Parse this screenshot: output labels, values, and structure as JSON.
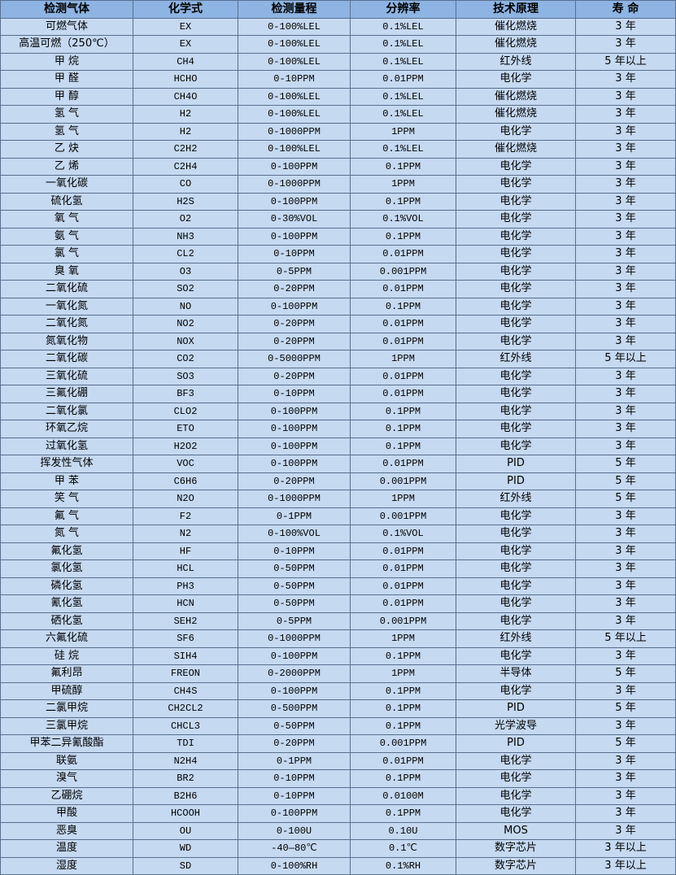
{
  "colors": {
    "header_bg": "#8db4e2",
    "row_bg": "#c5d9f1",
    "border": "#5a6f8f"
  },
  "table": {
    "headers": [
      "检测气体",
      "化学式",
      "检测量程",
      "分辨率",
      "技术原理",
      "寿 命"
    ],
    "rows": [
      [
        "可燃气体",
        "EX",
        "0-100%LEL",
        "0.1%LEL",
        "催化燃烧",
        "3 年"
      ],
      [
        "高温可燃（250℃）",
        "EX",
        "0-100%LEL",
        "0.1%LEL",
        "催化燃烧",
        "3 年"
      ],
      [
        "甲 烷",
        "CH4",
        "0-100%LEL",
        "0.1%LEL",
        "红外线",
        "5 年以上"
      ],
      [
        "甲 醛",
        "HCHO",
        "0-10PPM",
        "0.01PPM",
        "电化学",
        "3 年"
      ],
      [
        "甲 醇",
        "CH4O",
        "0-100%LEL",
        "0.1%LEL",
        "催化燃烧",
        "3 年"
      ],
      [
        "氢 气",
        "H2",
        "0-100%LEL",
        "0.1%LEL",
        "催化燃烧",
        "3 年"
      ],
      [
        "氢 气",
        "H2",
        "0-1000PPM",
        "1PPM",
        "电化学",
        "3 年"
      ],
      [
        "乙 炔",
        "C2H2",
        "0-100%LEL",
        "0.1%LEL",
        "催化燃烧",
        "3 年"
      ],
      [
        "乙 烯",
        "C2H4",
        "0-100PPM",
        "0.1PPM",
        "电化学",
        "3 年"
      ],
      [
        "一氧化碳",
        "CO",
        "0-1000PPM",
        "1PPM",
        "电化学",
        "3 年"
      ],
      [
        "硫化氢",
        "H2S",
        "0-100PPM",
        "0.1PPM",
        "电化学",
        "3 年"
      ],
      [
        "氧 气",
        "O2",
        "0-30%VOL",
        "0.1%VOL",
        "电化学",
        "3 年"
      ],
      [
        "氨 气",
        "NH3",
        "0-100PPM",
        "0.1PPM",
        "电化学",
        "3 年"
      ],
      [
        "氯 气",
        "CL2",
        "0-10PPM",
        "0.01PPM",
        "电化学",
        "3 年"
      ],
      [
        "臭 氧",
        "O3",
        "0-5PPM",
        "0.001PPM",
        "电化学",
        "3 年"
      ],
      [
        "二氧化硫",
        "SO2",
        "0-20PPM",
        "0.01PPM",
        "电化学",
        "3 年"
      ],
      [
        "一氧化氮",
        "NO",
        "0-100PPM",
        "0.1PPM",
        "电化学",
        "3 年"
      ],
      [
        "二氧化氮",
        "NO2",
        "0-20PPM",
        "0.01PPM",
        "电化学",
        "3 年"
      ],
      [
        "氮氧化物",
        "NOX",
        "0-20PPM",
        "0.01PPM",
        "电化学",
        "3 年"
      ],
      [
        "二氧化碳",
        "CO2",
        "0-5000PPM",
        "1PPM",
        "红外线",
        "5 年以上"
      ],
      [
        "三氧化硫",
        "SO3",
        "0-20PPM",
        "0.01PPM",
        "电化学",
        "3 年"
      ],
      [
        "三氟化硼",
        "BF3",
        "0-10PPM",
        "0.01PPM",
        "电化学",
        "3 年"
      ],
      [
        "二氧化氯",
        "CLO2",
        "0-100PPM",
        "0.1PPM",
        "电化学",
        "3 年"
      ],
      [
        "环氧乙烷",
        "ETO",
        "0-100PPM",
        "0.1PPM",
        "电化学",
        "3 年"
      ],
      [
        "过氧化氢",
        "H2O2",
        "0-100PPM",
        "0.1PPM",
        "电化学",
        "3 年"
      ],
      [
        "挥发性气体",
        "VOC",
        "0-100PPM",
        "0.01PPM",
        "PID",
        "5 年"
      ],
      [
        "甲 苯",
        "C6H6",
        "0-20PPM",
        "0.001PPM",
        "PID",
        "5 年"
      ],
      [
        "笑 气",
        "N2O",
        "0-1000PPM",
        "1PPM",
        "红外线",
        "5 年"
      ],
      [
        "氟 气",
        "F2",
        "0-1PPM",
        "0.001PPM",
        "电化学",
        "3 年"
      ],
      [
        "氮 气",
        "N2",
        "0-100%VOL",
        "0.1%VOL",
        "电化学",
        "3 年"
      ],
      [
        "氟化氢",
        "HF",
        "0-10PPM",
        "0.01PPM",
        "电化学",
        "3 年"
      ],
      [
        "氯化氢",
        "HCL",
        "0-50PPM",
        "0.01PPM",
        "电化学",
        "3 年"
      ],
      [
        "磷化氢",
        "PH3",
        "0-50PPM",
        "0.01PPM",
        "电化学",
        "3 年"
      ],
      [
        "氰化氢",
        "HCN",
        "0-50PPM",
        "0.01PPM",
        "电化学",
        "3 年"
      ],
      [
        "硒化氢",
        "SEH2",
        "0-5PPM",
        "0.001PPM",
        "电化学",
        "3 年"
      ],
      [
        "六氟化硫",
        "SF6",
        "0-1000PPM",
        "1PPM",
        "红外线",
        "5 年以上"
      ],
      [
        "硅 烷",
        "SIH4",
        "0-100PPM",
        "0.1PPM",
        "电化学",
        "3 年"
      ],
      [
        "氟利昂",
        "FREON",
        "0-2000PPM",
        "1PPM",
        "半导体",
        "5 年"
      ],
      [
        "甲硫醇",
        "CH4S",
        "0-100PPM",
        "0.1PPM",
        "电化学",
        "3 年"
      ],
      [
        "二氯甲烷",
        "CH2CL2",
        "0-500PPM",
        "0.1PPM",
        "PID",
        "5 年"
      ],
      [
        "三氯甲烷",
        "CHCL3",
        "0-50PPM",
        "0.1PPM",
        "光学波导",
        "3 年"
      ],
      [
        "甲苯二异氰酸酯",
        "TDI",
        "0-20PPM",
        "0.001PPM",
        "PID",
        "5 年"
      ],
      [
        "联氨",
        "N2H4",
        "0-1PPM",
        "0.01PPM",
        "电化学",
        "3 年"
      ],
      [
        "溴气",
        "BR2",
        "0-10PPM",
        "0.1PPM",
        "电化学",
        "3 年"
      ],
      [
        "乙硼烷",
        "B2H6",
        "0-10PPM",
        "0.0100M",
        "电化学",
        "3 年"
      ],
      [
        "甲酸",
        "HCOOH",
        "0-100PPM",
        "0.1PPM",
        "电化学",
        "3 年"
      ],
      [
        "恶臭",
        "OU",
        "0-100U",
        "0.10U",
        "MOS",
        "3 年"
      ],
      [
        "温度",
        "WD",
        "-40—80℃",
        "0.1℃",
        "数字芯片",
        "3 年以上"
      ],
      [
        "湿度",
        "SD",
        "0-100%RH",
        "0.1%RH",
        "数字芯片",
        "3 年以上"
      ]
    ]
  }
}
